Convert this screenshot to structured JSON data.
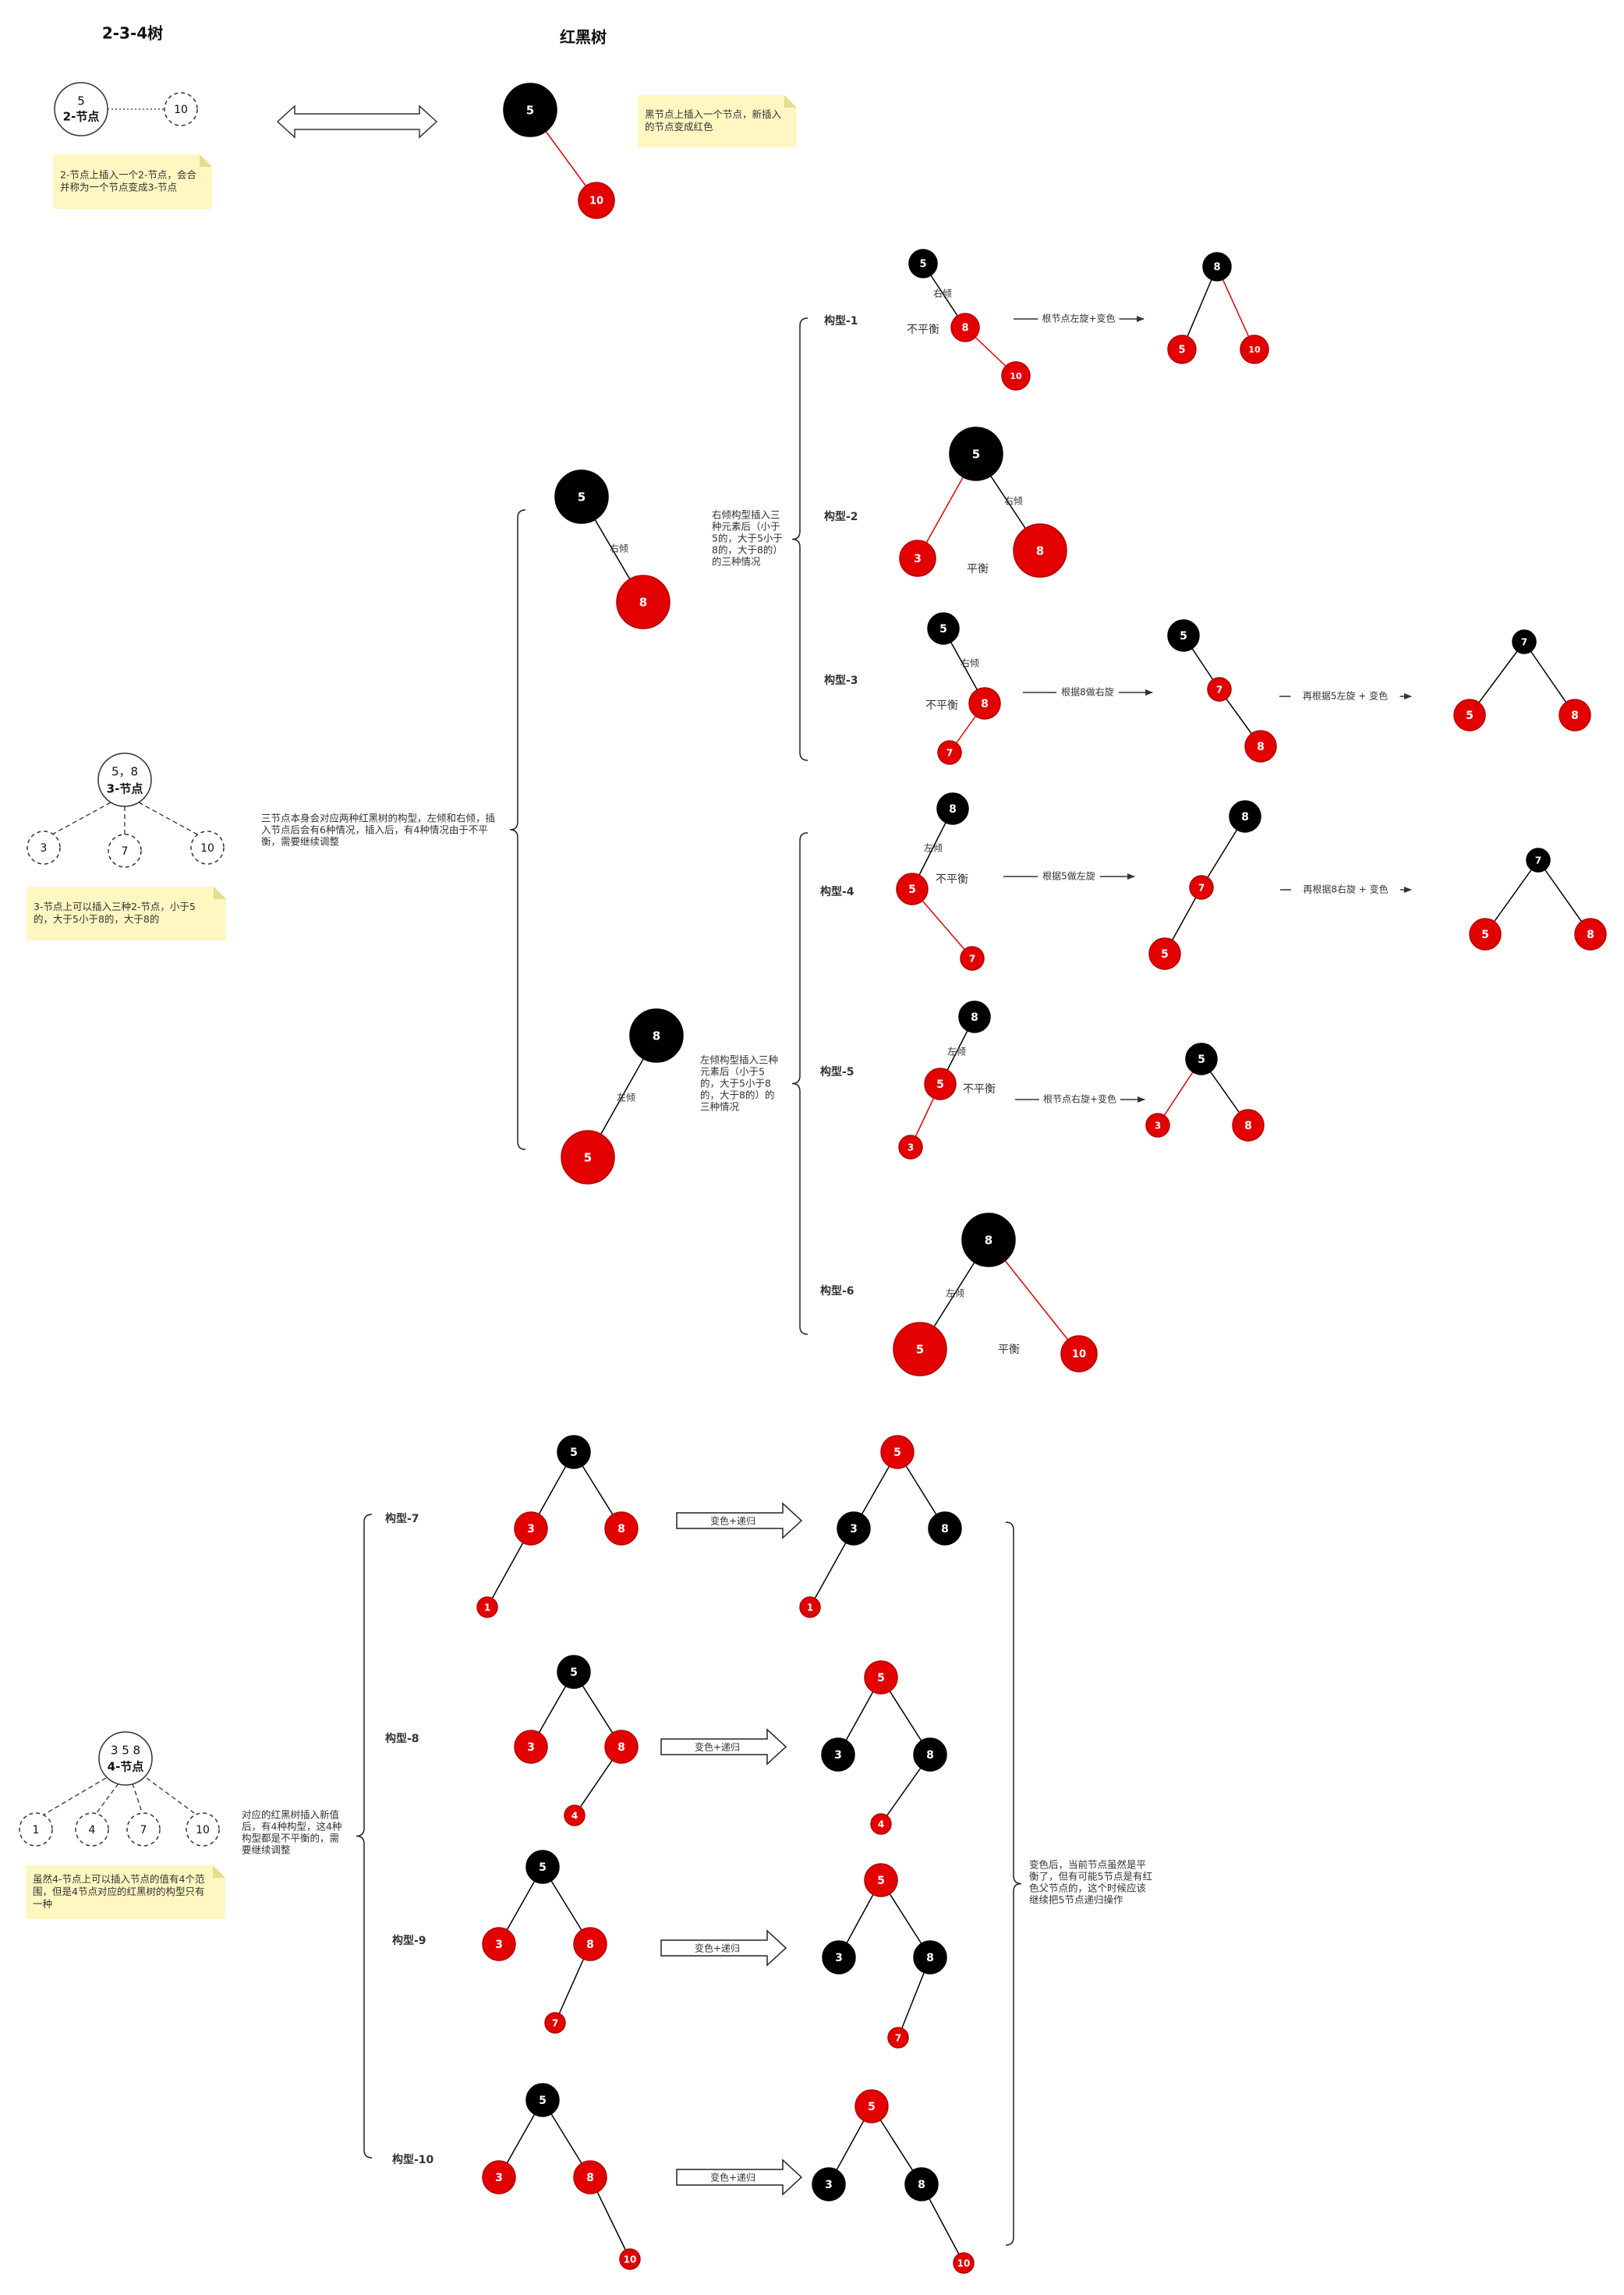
{
  "headers": {
    "left": "2-3-4树",
    "right": "红黑树"
  },
  "colors": {
    "red": "#e30000",
    "black": "#000000",
    "edge_red": "#e30000",
    "edge_black": "#000000",
    "note_bg": "#fff7c2"
  },
  "node_values": [
    "5",
    "10",
    "8",
    "3",
    "7",
    "1",
    "4"
  ],
  "two_node": {
    "line1": "5",
    "line2": "2-节点",
    "dashed_child": "10"
  },
  "three_node": {
    "line1": "5，8",
    "line2": "3-节点",
    "children": [
      "3",
      "7",
      "10"
    ]
  },
  "four_node": {
    "line1": "3 5 8",
    "line2": "4-节点",
    "children": [
      "1",
      "4",
      "7",
      "10"
    ]
  },
  "notes": {
    "two_node": [
      "2-节点上插入一个2-节点，会合",
      "并称为一个节点变成3-节点"
    ],
    "rb_insert": [
      "黑节点上插入一个节点，新插入",
      "的节点变成红色"
    ],
    "three_node": [
      "3-节点上可以插入三种2-节点，小于5",
      "的，大于5小于8的，大于8的"
    ],
    "four_node": [
      "虽然4-节点上可以插入节点的值有4个范",
      "围，但是4节点对应的红黑树的构型只有",
      "一种"
    ]
  },
  "descriptions": {
    "three_node": [
      "三节点本身会对应两种红黑树的构型，左倾和右倾，插",
      "入节点后会有6种情况，插入后，有4种情况由于不平",
      "衡，需要继续调整"
    ],
    "right_lean": [
      "右倾构型插入三",
      "种元素后（小于",
      "5的，大于5小于",
      "8的，大于8的）",
      "的三种情况"
    ],
    "left_lean": [
      "左倾构型插入三种",
      "元素后（小于5",
      "的，大于5小于8",
      "的，大于8的）的",
      "三种情况"
    ],
    "four_node": [
      "对应的红黑树插入新值",
      "后，有4种构型，这4种",
      "构型都是不平衡的，需",
      "要继续调整"
    ],
    "after_recolor": [
      "变色后，当前节点虽然是平",
      "衡了，但有可能5节点是有红",
      "色父节点的，这个时候应该",
      "继续把5节点递归操作"
    ]
  },
  "edge_labels": {
    "right_lean": "右倾",
    "left_lean": "左倾"
  },
  "states": {
    "unbalanced": "不平衡",
    "balanced": "平衡"
  },
  "config_labels": [
    "构型-1",
    "构型-2",
    "构型-3",
    "构型-4",
    "构型-5",
    "构型-6",
    "构型-7",
    "构型-8",
    "构型-9",
    "构型-10"
  ],
  "operations": {
    "c1": "根节点左旋+变色",
    "c3a": "根据8做右旋",
    "c3b": "再根据5左旋 + 变色",
    "c4a": "根据5做左旋",
    "c4b": "再根据8右旋 + 变色",
    "c5": "根节点右旋+变色",
    "recolor": "变色+递归"
  }
}
